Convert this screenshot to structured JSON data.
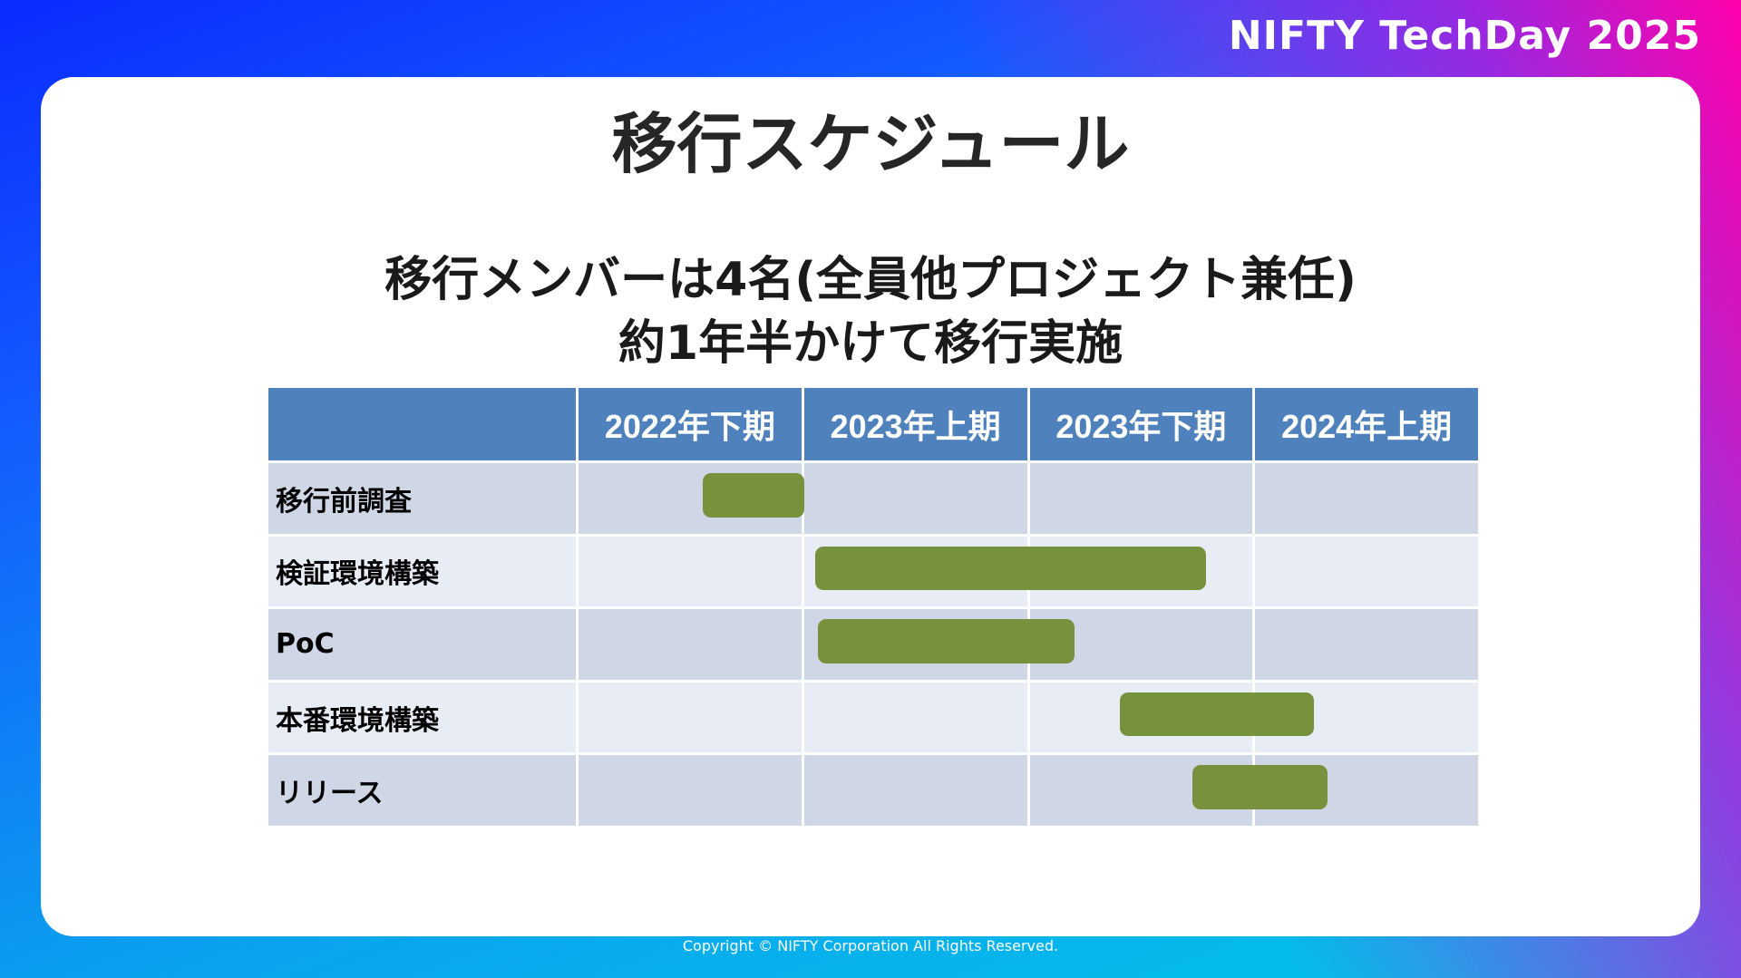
{
  "brand": "NIFTY TechDay 2025",
  "title": "移行スケジュール",
  "subtitle_lines": [
    "移行メンバーは4名(全員他プロジェクト兼任)",
    "約1年半かけて移行実施"
  ],
  "footer": "Copyright © NIFTY Corporation All Rights Reserved.",
  "colors": {
    "header": "#4f81bd",
    "bar": "#77923c",
    "row_odd": "#cfd7e7",
    "row_even": "#e8ecf4"
  },
  "chart_data": {
    "type": "gantt",
    "periods": [
      "2022年下期",
      "2023年上期",
      "2023年下期",
      "2024年上期"
    ],
    "tasks": [
      {
        "name": "移行前調査",
        "start": 0.55,
        "end": 1.0
      },
      {
        "name": "検証環境構築",
        "start": 1.05,
        "end": 2.78
      },
      {
        "name": "PoC",
        "start": 1.06,
        "end": 2.2
      },
      {
        "name": "本番環境構築",
        "start": 2.4,
        "end": 3.26
      },
      {
        "name": "リリース",
        "start": 2.72,
        "end": 3.32
      }
    ]
  }
}
